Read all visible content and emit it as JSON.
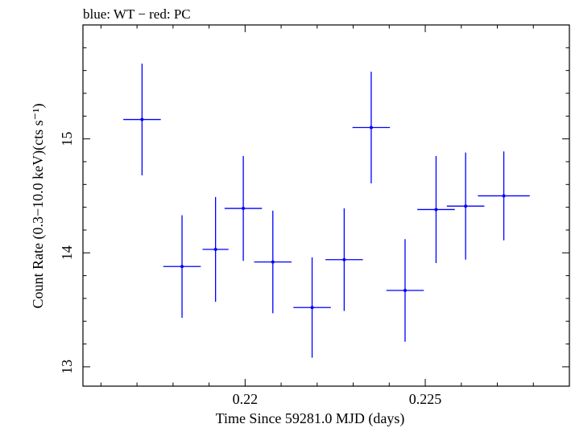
{
  "chart_data": {
    "type": "scatter",
    "title": "blue: WT − red: PC",
    "xlabel": "Time Since 59281.0 MJD (days)",
    "ylabel": "Count Rate (0.3−10.0 keV)(cts s⁻¹)",
    "xlim": [
      0.2155,
      0.229
    ],
    "ylim": [
      12.83,
      16.0
    ],
    "x_ticks": [
      0.22,
      0.225
    ],
    "x_tick_labels": [
      "0.22",
      "0.225"
    ],
    "y_ticks": [
      13,
      14,
      15
    ],
    "y_tick_labels": [
      "13",
      "14",
      "15"
    ],
    "grid": false,
    "series": [
      {
        "color": "#0000ff",
        "points": [
          {
            "x": 0.21714,
            "y": 15.17,
            "xerr": 0.00052,
            "yerr": 0.49
          },
          {
            "x": 0.21825,
            "y": 13.88,
            "xerr": 0.00052,
            "yerr": 0.45
          },
          {
            "x": 0.21918,
            "y": 14.03,
            "xerr": 0.00036,
            "yerr": 0.46
          },
          {
            "x": 0.21995,
            "y": 14.39,
            "xerr": 0.00052,
            "yerr": 0.46
          },
          {
            "x": 0.22077,
            "y": 13.92,
            "xerr": 0.00052,
            "yerr": 0.45
          },
          {
            "x": 0.22186,
            "y": 13.52,
            "xerr": 0.00052,
            "yerr": 0.44
          },
          {
            "x": 0.22275,
            "y": 13.94,
            "xerr": 0.00052,
            "yerr": 0.45
          },
          {
            "x": 0.2235,
            "y": 15.1,
            "xerr": 0.00052,
            "yerr": 0.49
          },
          {
            "x": 0.22444,
            "y": 13.67,
            "xerr": 0.00052,
            "yerr": 0.45
          },
          {
            "x": 0.2253,
            "y": 14.38,
            "xerr": 0.00052,
            "yerr": 0.47
          },
          {
            "x": 0.22612,
            "y": 14.41,
            "xerr": 0.00052,
            "yerr": 0.47
          },
          {
            "x": 0.22718,
            "y": 14.5,
            "xerr": 0.00072,
            "yerr": 0.39
          }
        ]
      }
    ]
  }
}
